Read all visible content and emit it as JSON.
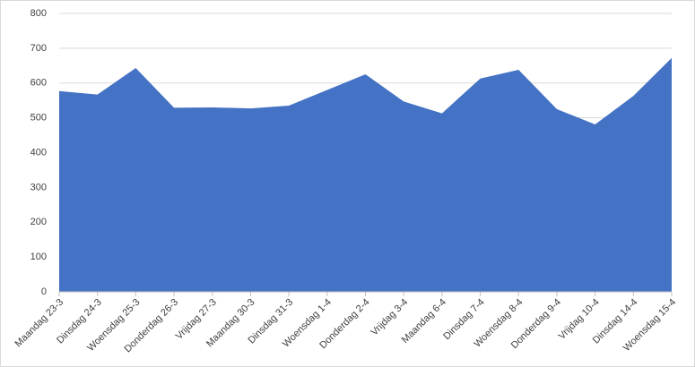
{
  "chart_data": {
    "type": "area",
    "categories": [
      "Maandag 23-3",
      "Dinsdag 24-3",
      "Woensdag 25-3",
      "Donderdag 26-3",
      "Vrijdag 27-3",
      "Maandag 30-3",
      "Dinsdag 31-3",
      "Woensdag 1-4",
      "Donderdag 2-4",
      "Vrijdag 3-4",
      "Maandag 6-4",
      "Dinsdag 7-4",
      "Woensdag 8-4",
      "Donderdag 9-4",
      "Vrijdag 10-4",
      "Dinsdag 14-4",
      "Woensdag 15-4"
    ],
    "values": [
      577,
      567,
      643,
      529,
      530,
      527,
      535,
      580,
      625,
      547,
      513,
      613,
      638,
      525,
      481,
      563,
      672
    ],
    "color": "#4472c4",
    "ylim": [
      0,
      800
    ],
    "yticks": [
      0,
      100,
      200,
      300,
      400,
      500,
      600,
      700,
      800
    ],
    "grid": true
  }
}
